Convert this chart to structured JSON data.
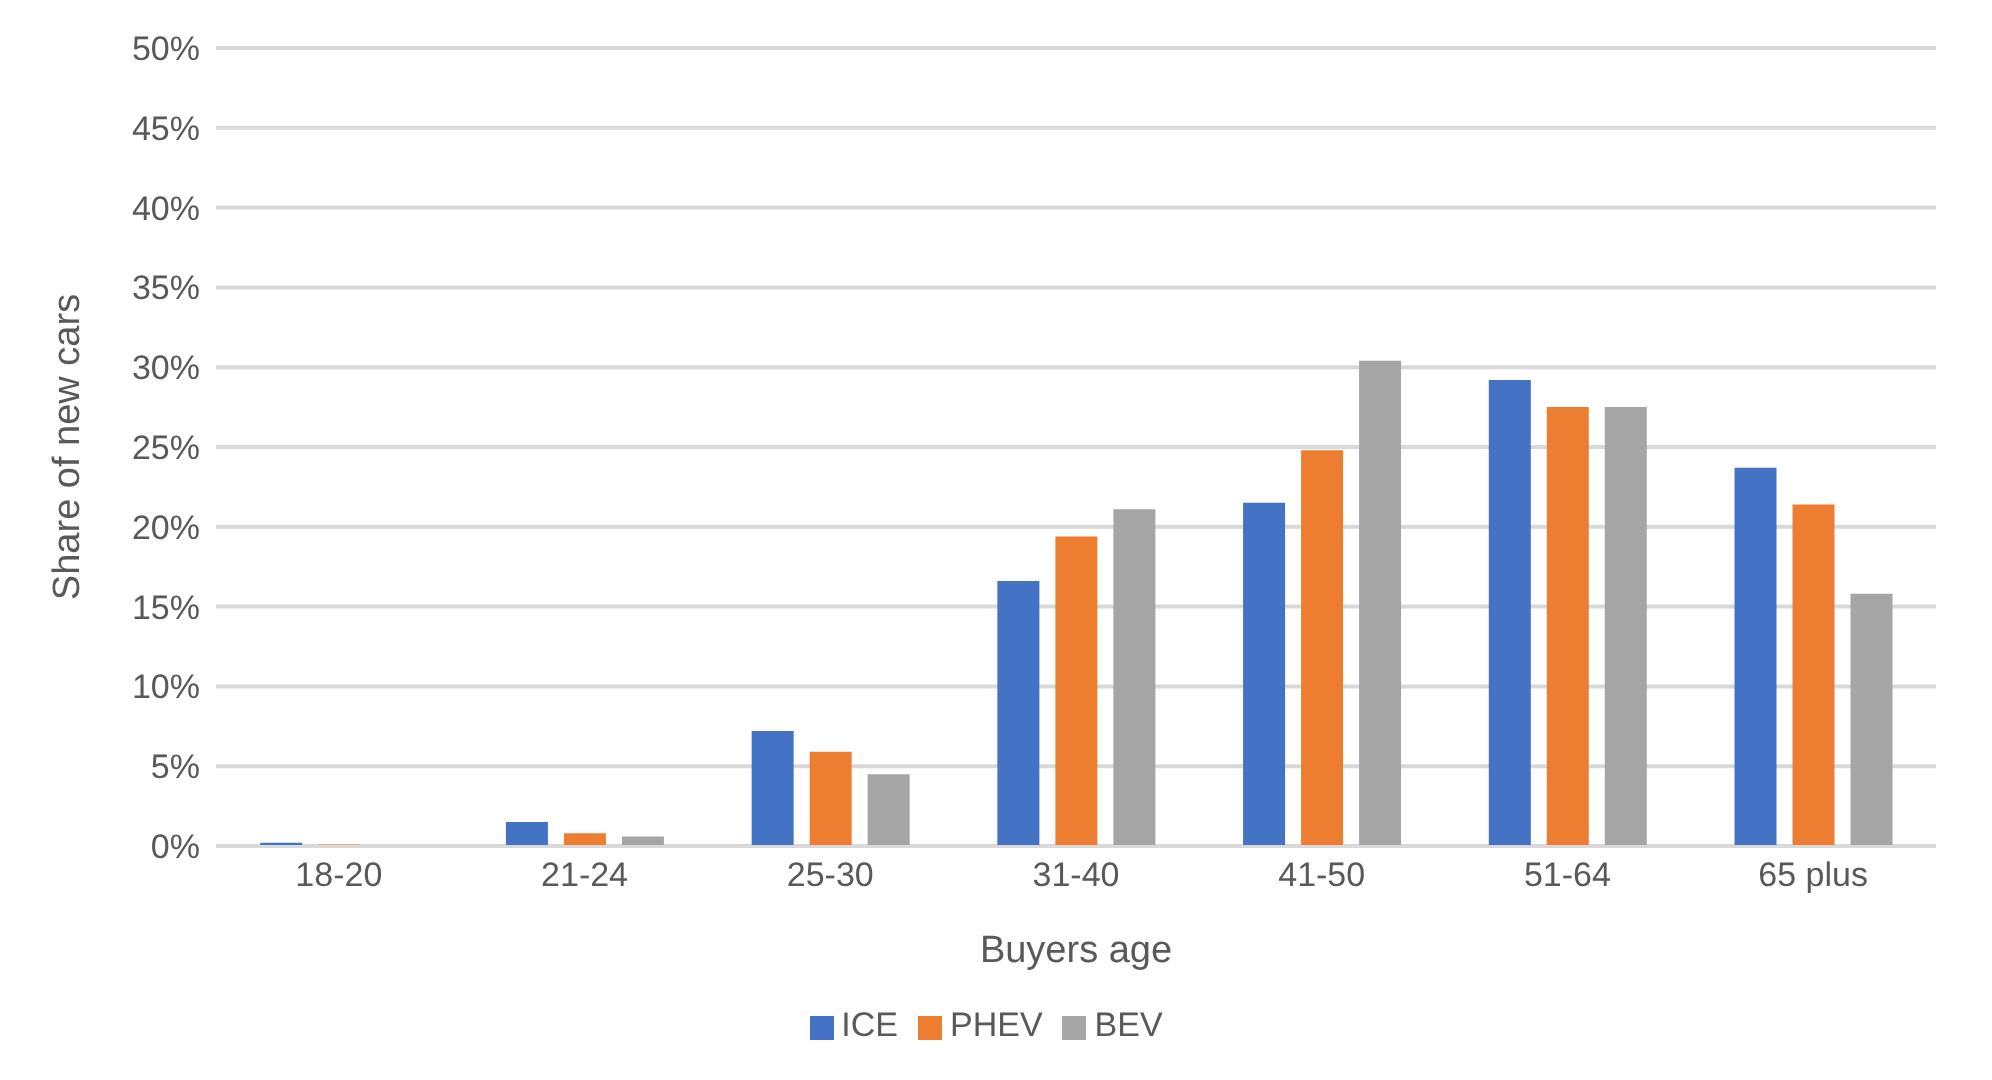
{
  "chart_data": {
    "type": "bar",
    "xlabel": "Buyers age",
    "ylabel": "Share of new cars",
    "categories": [
      "18-20",
      "21-24",
      "25-30",
      "31-40",
      "41-50",
      "51-64",
      "65 plus"
    ],
    "series": [
      {
        "name": "ICE",
        "color": "#4472c4",
        "values": [
          0.2,
          1.5,
          7.2,
          16.6,
          21.5,
          29.2,
          23.7
        ]
      },
      {
        "name": "PHEV",
        "color": "#ed7d31",
        "values": [
          0.1,
          0.8,
          5.9,
          19.4,
          24.8,
          27.5,
          21.4
        ]
      },
      {
        "name": "BEV",
        "color": "#a5a5a5",
        "values": [
          null,
          0.6,
          4.5,
          21.1,
          30.4,
          27.5,
          15.8
        ]
      }
    ],
    "ylim": [
      0,
      50
    ],
    "yticks": [
      {
        "value": 0,
        "label": "0%"
      },
      {
        "value": 5,
        "label": "5%"
      },
      {
        "value": 10,
        "label": "10%"
      },
      {
        "value": 15,
        "label": "15%"
      },
      {
        "value": 20,
        "label": "20%"
      },
      {
        "value": 25,
        "label": "25%"
      },
      {
        "value": 30,
        "label": "30%"
      },
      {
        "value": 35,
        "label": "35%"
      },
      {
        "value": 40,
        "label": "40%"
      },
      {
        "value": 45,
        "label": "45%"
      },
      {
        "value": 50,
        "label": "50%"
      }
    ],
    "grid": "y",
    "legend": "bottom"
  }
}
